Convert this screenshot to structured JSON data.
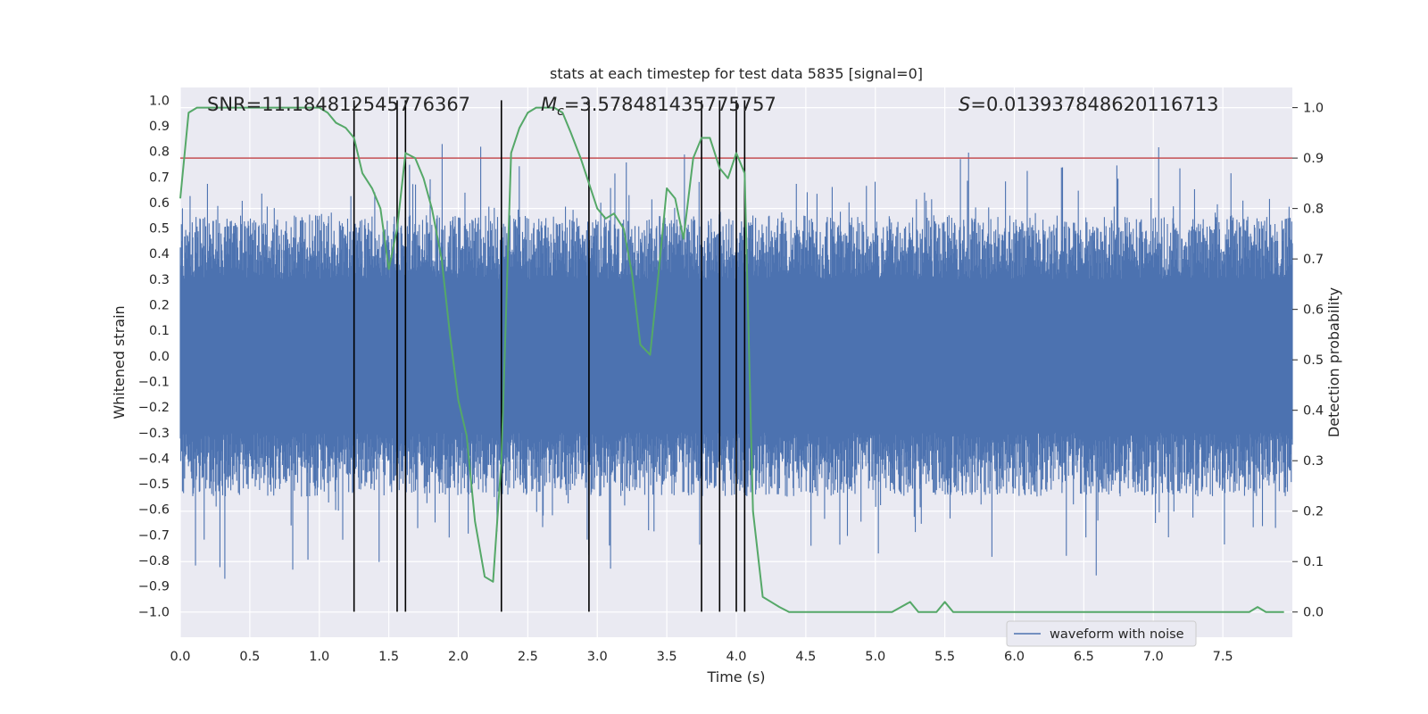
{
  "chart_data": {
    "type": "line",
    "title": "stats at each timestep for test data 5835 [signal=0]",
    "xlabel": "Time (s)",
    "ylabel_left": "Whitened strain",
    "ylabel_right": "Detection probability",
    "xlim": [
      0.0,
      8.0
    ],
    "ylim_left": [
      -1.1,
      1.05
    ],
    "ylim_right": [
      -0.05,
      1.04
    ],
    "xticks": [
      "0.0",
      "0.5",
      "1.0",
      "1.5",
      "2.0",
      "2.5",
      "3.0",
      "3.5",
      "4.0",
      "4.5",
      "5.0",
      "5.5",
      "6.0",
      "6.5",
      "7.0",
      "7.5"
    ],
    "yticks_left": [
      "1.0",
      "0.9",
      "0.8",
      "0.7",
      "0.6",
      "0.5",
      "0.4",
      "0.3",
      "0.2",
      "0.1",
      "0.0",
      "-0.1",
      "-0.2",
      "-0.3",
      "-0.4",
      "-0.5",
      "-0.6",
      "-0.7",
      "-0.8",
      "-0.9",
      "-1.0"
    ],
    "yticks_right": [
      "1.0",
      "0.9",
      "0.8",
      "0.7",
      "0.6",
      "0.5",
      "0.4",
      "0.3",
      "0.2",
      "0.1",
      "0.0"
    ],
    "grid": true,
    "legend": {
      "location": "lower-right",
      "entries": [
        "waveform with noise"
      ]
    },
    "annotations": {
      "snr": "SNR=11.184812545776367",
      "mc_symbol": "M",
      "mc_sub": "c",
      "mc_value": "=3.578481435775757",
      "s_symbol": "S",
      "s_value": "=0.013937848620116713"
    },
    "threshold": {
      "value_right": 0.9,
      "color": "#c44e52"
    },
    "vertical_lines_x": [
      1.25,
      1.56,
      1.62,
      2.31,
      2.94,
      3.75,
      3.88,
      4.0,
      4.06
    ],
    "series": [
      {
        "name": "waveform with noise",
        "axis": "left",
        "color": "#4c72b0",
        "kind": "noise-envelope",
        "samples": 2048,
        "notes": "dense whitened-strain noise between about -0.9 and 0.9"
      },
      {
        "name": "detection probability",
        "axis": "right",
        "color": "#55a868",
        "x": [
          0.0,
          0.06,
          0.12,
          0.25,
          0.5,
          0.75,
          1.0,
          1.06,
          1.12,
          1.19,
          1.25,
          1.31,
          1.38,
          1.44,
          1.5,
          1.56,
          1.62,
          1.69,
          1.75,
          1.81,
          1.88,
          1.94,
          2.0,
          2.06,
          2.12,
          2.19,
          2.25,
          2.31,
          2.38,
          2.44,
          2.5,
          2.56,
          2.62,
          2.69,
          2.75,
          2.81,
          2.88,
          2.94,
          3.0,
          3.06,
          3.12,
          3.19,
          3.25,
          3.31,
          3.38,
          3.44,
          3.5,
          3.56,
          3.62,
          3.69,
          3.75,
          3.81,
          3.88,
          3.94,
          4.0,
          4.06,
          4.12,
          4.19,
          4.25,
          4.31,
          4.38,
          4.44,
          4.5,
          4.75,
          5.0,
          5.12,
          5.25,
          5.31,
          5.44,
          5.5,
          5.56,
          5.62,
          5.69,
          5.81,
          6.0,
          6.25,
          6.5,
          7.0,
          7.5,
          7.62,
          7.69,
          7.75,
          7.81,
          7.88,
          7.94
        ],
        "values": [
          0.82,
          0.99,
          1.0,
          1.0,
          1.0,
          1.0,
          1.0,
          0.99,
          0.97,
          0.96,
          0.94,
          0.87,
          0.84,
          0.8,
          0.68,
          0.76,
          0.91,
          0.9,
          0.86,
          0.8,
          0.7,
          0.55,
          0.42,
          0.35,
          0.18,
          0.07,
          0.06,
          0.3,
          0.91,
          0.96,
          0.99,
          1.0,
          1.0,
          1.0,
          0.99,
          0.95,
          0.9,
          0.85,
          0.8,
          0.78,
          0.79,
          0.76,
          0.67,
          0.53,
          0.51,
          0.67,
          0.84,
          0.82,
          0.74,
          0.9,
          0.94,
          0.94,
          0.88,
          0.86,
          0.91,
          0.87,
          0.2,
          0.03,
          0.02,
          0.01,
          0.0,
          0.0,
          0.0,
          0.0,
          0.0,
          0.0,
          0.02,
          0.0,
          0.0,
          0.02,
          0.0,
          0.0,
          0.0,
          0.0,
          0.0,
          0.0,
          0.0,
          0.0,
          0.0,
          0.0,
          0.0,
          0.01,
          0.0,
          0.0,
          0.0
        ]
      }
    ]
  }
}
